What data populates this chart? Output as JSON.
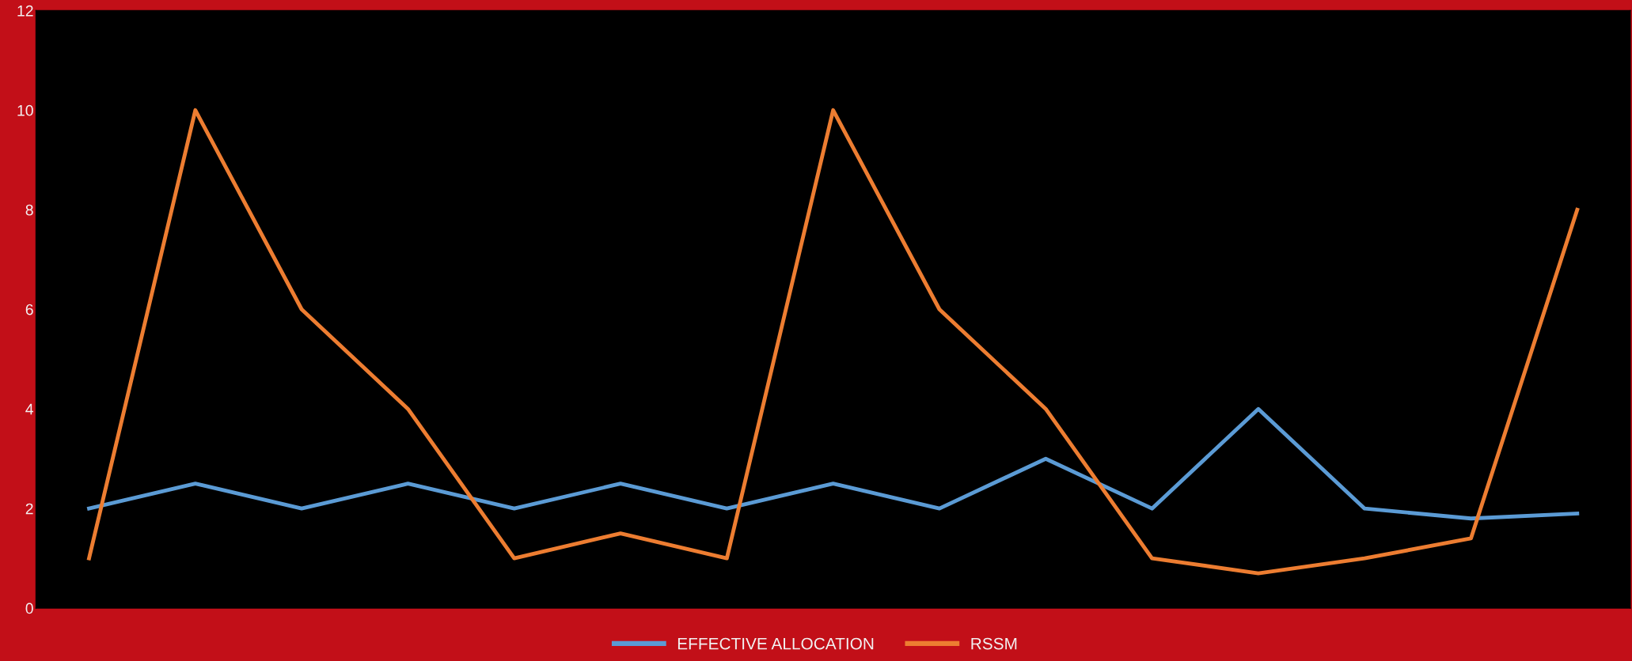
{
  "chart_data": {
    "type": "line",
    "categories": [
      null,
      null,
      null,
      null,
      null,
      null,
      null,
      null,
      null,
      null,
      null,
      null,
      null,
      null,
      null
    ],
    "series": [
      {
        "name": "EFFECTIVE ALLOCATION",
        "color": "#5b9bd5",
        "values": [
          2,
          2.5,
          2,
          2.5,
          2,
          2.5,
          2,
          2.5,
          2,
          3,
          2,
          4,
          2,
          1.8,
          1.9
        ]
      },
      {
        "name": "RSSM",
        "color": "#ed7d31",
        "values": [
          1,
          10,
          6,
          4,
          1,
          1.5,
          1,
          10,
          6,
          4,
          1,
          0.7,
          1,
          1.4,
          8
        ]
      }
    ],
    "ylim": [
      0,
      12
    ],
    "yticks": [
      0,
      2,
      4,
      6,
      8,
      10,
      12
    ],
    "tick_labels": "y",
    "grid": false,
    "legend": "bottom",
    "marker": "none",
    "line_style": "solid"
  }
}
